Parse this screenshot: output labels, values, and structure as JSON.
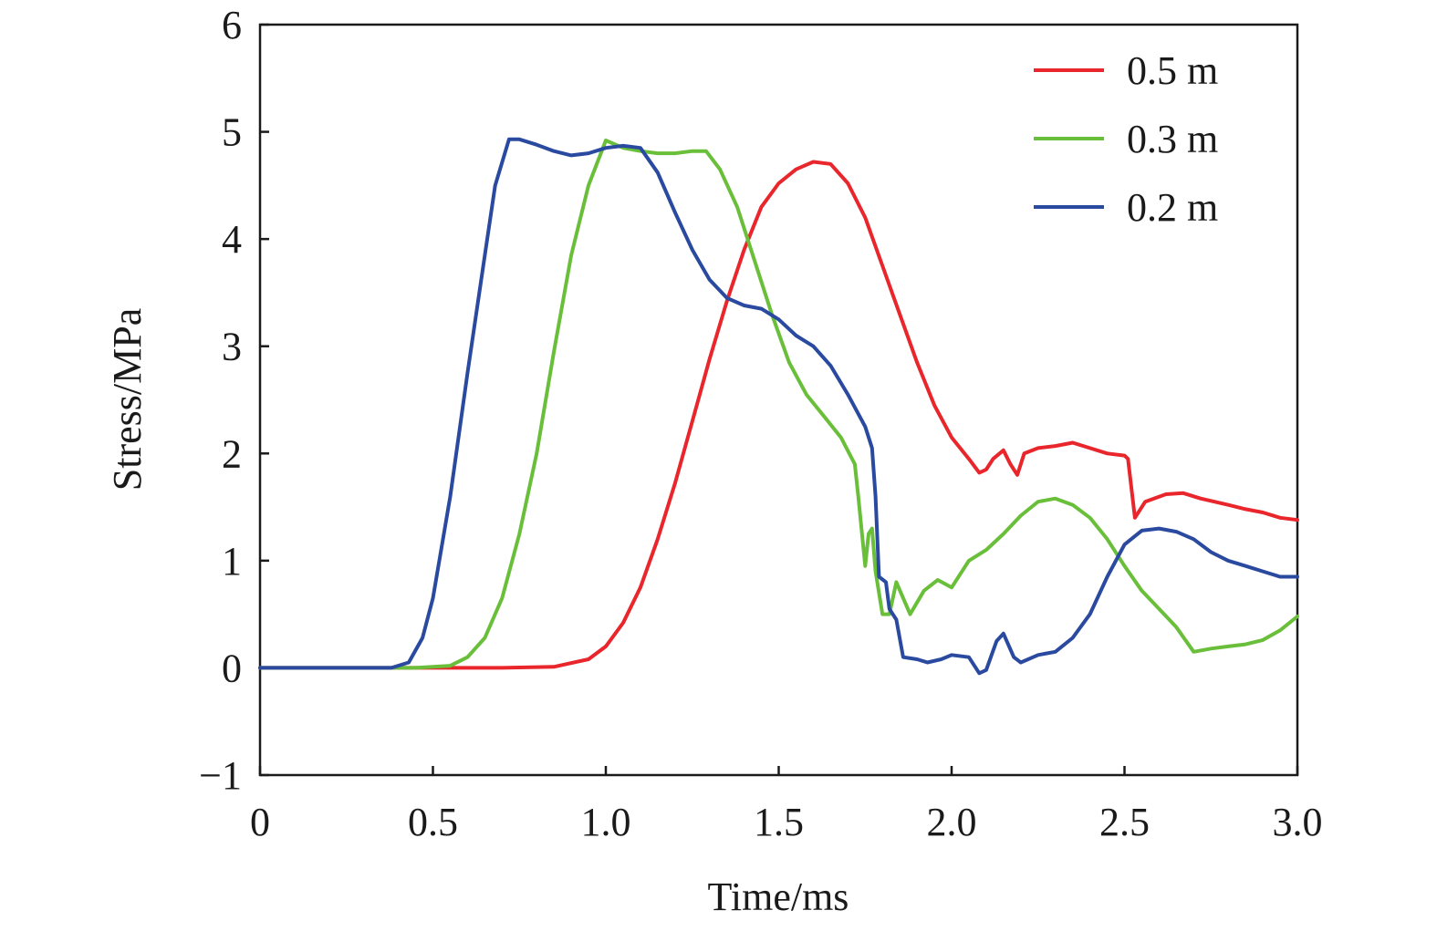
{
  "chart_data": {
    "type": "line",
    "title": "",
    "xlabel": "Time/ms",
    "ylabel": "Stress/MPa",
    "xlim": [
      0,
      3.0
    ],
    "ylim": [
      -1,
      6
    ],
    "xticks": [
      "0",
      "0.5",
      "1.0",
      "1.5",
      "2.0",
      "2.5",
      "3.0"
    ],
    "xtick_values": [
      0,
      0.5,
      1.0,
      1.5,
      2.0,
      2.5,
      3.0
    ],
    "yticks": [
      "−1",
      "0",
      "1",
      "2",
      "3",
      "4",
      "5",
      "6"
    ],
    "ytick_values": [
      -1,
      0,
      1,
      2,
      3,
      4,
      5,
      6
    ],
    "grid": false,
    "legend_position": "top-right",
    "series": [
      {
        "name": "0.5 m",
        "color": "#e8262b",
        "points": [
          [
            0,
            0
          ],
          [
            0.7,
            0
          ],
          [
            0.85,
            0.01
          ],
          [
            0.95,
            0.08
          ],
          [
            1.0,
            0.2
          ],
          [
            1.05,
            0.42
          ],
          [
            1.1,
            0.75
          ],
          [
            1.15,
            1.2
          ],
          [
            1.2,
            1.72
          ],
          [
            1.25,
            2.3
          ],
          [
            1.3,
            2.88
          ],
          [
            1.35,
            3.42
          ],
          [
            1.4,
            3.9
          ],
          [
            1.45,
            4.3
          ],
          [
            1.5,
            4.52
          ],
          [
            1.55,
            4.65
          ],
          [
            1.6,
            4.72
          ],
          [
            1.65,
            4.7
          ],
          [
            1.7,
            4.52
          ],
          [
            1.75,
            4.2
          ],
          [
            1.8,
            3.75
          ],
          [
            1.85,
            3.3
          ],
          [
            1.9,
            2.85
          ],
          [
            1.95,
            2.45
          ],
          [
            2.0,
            2.15
          ],
          [
            2.05,
            1.95
          ],
          [
            2.08,
            1.82
          ],
          [
            2.1,
            1.85
          ],
          [
            2.12,
            1.95
          ],
          [
            2.15,
            2.03
          ],
          [
            2.17,
            1.9
          ],
          [
            2.19,
            1.8
          ],
          [
            2.21,
            2.0
          ],
          [
            2.25,
            2.05
          ],
          [
            2.3,
            2.07
          ],
          [
            2.35,
            2.1
          ],
          [
            2.4,
            2.05
          ],
          [
            2.45,
            2.0
          ],
          [
            2.5,
            1.98
          ],
          [
            2.51,
            1.95
          ],
          [
            2.53,
            1.4
          ],
          [
            2.56,
            1.55
          ],
          [
            2.62,
            1.62
          ],
          [
            2.67,
            1.63
          ],
          [
            2.72,
            1.58
          ],
          [
            2.8,
            1.52
          ],
          [
            2.85,
            1.48
          ],
          [
            2.9,
            1.45
          ],
          [
            2.95,
            1.4
          ],
          [
            3.0,
            1.38
          ]
        ]
      },
      {
        "name": "0.3 m",
        "color": "#6abf3a",
        "points": [
          [
            0,
            0
          ],
          [
            0.45,
            0
          ],
          [
            0.55,
            0.02
          ],
          [
            0.6,
            0.1
          ],
          [
            0.65,
            0.28
          ],
          [
            0.7,
            0.65
          ],
          [
            0.75,
            1.25
          ],
          [
            0.8,
            2.0
          ],
          [
            0.85,
            2.95
          ],
          [
            0.9,
            3.85
          ],
          [
            0.95,
            4.5
          ],
          [
            1.0,
            4.92
          ],
          [
            1.05,
            4.85
          ],
          [
            1.1,
            4.82
          ],
          [
            1.15,
            4.8
          ],
          [
            1.2,
            4.8
          ],
          [
            1.25,
            4.82
          ],
          [
            1.29,
            4.82
          ],
          [
            1.33,
            4.65
          ],
          [
            1.38,
            4.3
          ],
          [
            1.43,
            3.8
          ],
          [
            1.48,
            3.3
          ],
          [
            1.53,
            2.85
          ],
          [
            1.58,
            2.55
          ],
          [
            1.63,
            2.35
          ],
          [
            1.68,
            2.15
          ],
          [
            1.72,
            1.9
          ],
          [
            1.73,
            1.6
          ],
          [
            1.75,
            0.95
          ],
          [
            1.76,
            1.25
          ],
          [
            1.77,
            1.3
          ],
          [
            1.78,
            0.9
          ],
          [
            1.8,
            0.5
          ],
          [
            1.82,
            0.5
          ],
          [
            1.84,
            0.8
          ],
          [
            1.88,
            0.5
          ],
          [
            1.92,
            0.72
          ],
          [
            1.96,
            0.82
          ],
          [
            2.0,
            0.75
          ],
          [
            2.05,
            1.0
          ],
          [
            2.1,
            1.1
          ],
          [
            2.15,
            1.25
          ],
          [
            2.2,
            1.42
          ],
          [
            2.25,
            1.55
          ],
          [
            2.3,
            1.58
          ],
          [
            2.35,
            1.52
          ],
          [
            2.4,
            1.4
          ],
          [
            2.45,
            1.2
          ],
          [
            2.5,
            0.95
          ],
          [
            2.55,
            0.72
          ],
          [
            2.6,
            0.55
          ],
          [
            2.65,
            0.38
          ],
          [
            2.7,
            0.15
          ],
          [
            2.75,
            0.18
          ],
          [
            2.8,
            0.2
          ],
          [
            2.85,
            0.22
          ],
          [
            2.9,
            0.26
          ],
          [
            2.95,
            0.35
          ],
          [
            3.0,
            0.48
          ]
        ]
      },
      {
        "name": "0.2 m",
        "color": "#2a4aa0",
        "points": [
          [
            0,
            0
          ],
          [
            0.38,
            0
          ],
          [
            0.43,
            0.05
          ],
          [
            0.47,
            0.28
          ],
          [
            0.5,
            0.65
          ],
          [
            0.55,
            1.6
          ],
          [
            0.6,
            2.75
          ],
          [
            0.65,
            3.85
          ],
          [
            0.68,
            4.5
          ],
          [
            0.72,
            4.93
          ],
          [
            0.75,
            4.93
          ],
          [
            0.8,
            4.88
          ],
          [
            0.85,
            4.82
          ],
          [
            0.9,
            4.78
          ],
          [
            0.95,
            4.8
          ],
          [
            1.0,
            4.85
          ],
          [
            1.05,
            4.87
          ],
          [
            1.1,
            4.85
          ],
          [
            1.15,
            4.62
          ],
          [
            1.2,
            4.25
          ],
          [
            1.25,
            3.9
          ],
          [
            1.3,
            3.62
          ],
          [
            1.35,
            3.45
          ],
          [
            1.4,
            3.38
          ],
          [
            1.45,
            3.35
          ],
          [
            1.5,
            3.25
          ],
          [
            1.55,
            3.1
          ],
          [
            1.6,
            3.0
          ],
          [
            1.65,
            2.82
          ],
          [
            1.7,
            2.55
          ],
          [
            1.75,
            2.25
          ],
          [
            1.77,
            2.05
          ],
          [
            1.78,
            1.6
          ],
          [
            1.79,
            0.85
          ],
          [
            1.81,
            0.8
          ],
          [
            1.82,
            0.55
          ],
          [
            1.84,
            0.45
          ],
          [
            1.86,
            0.1
          ],
          [
            1.9,
            0.08
          ],
          [
            1.93,
            0.05
          ],
          [
            1.97,
            0.08
          ],
          [
            2.0,
            0.12
          ],
          [
            2.05,
            0.1
          ],
          [
            2.08,
            -0.05
          ],
          [
            2.1,
            -0.02
          ],
          [
            2.13,
            0.25
          ],
          [
            2.15,
            0.32
          ],
          [
            2.18,
            0.1
          ],
          [
            2.2,
            0.05
          ],
          [
            2.25,
            0.12
          ],
          [
            2.3,
            0.15
          ],
          [
            2.35,
            0.28
          ],
          [
            2.4,
            0.5
          ],
          [
            2.45,
            0.85
          ],
          [
            2.5,
            1.15
          ],
          [
            2.55,
            1.28
          ],
          [
            2.6,
            1.3
          ],
          [
            2.65,
            1.27
          ],
          [
            2.7,
            1.2
          ],
          [
            2.75,
            1.08
          ],
          [
            2.8,
            1.0
          ],
          [
            2.85,
            0.95
          ],
          [
            2.9,
            0.9
          ],
          [
            2.95,
            0.85
          ],
          [
            3.0,
            0.85
          ]
        ]
      }
    ]
  }
}
